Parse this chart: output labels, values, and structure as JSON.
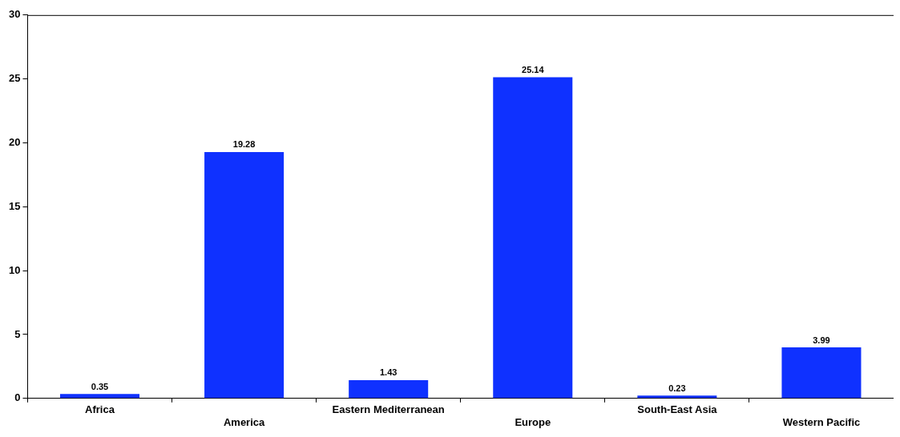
{
  "chart_data": {
    "type": "bar",
    "categories": [
      "Africa",
      "America",
      "Eastern Mediterranean",
      "Europe",
      "South-East Asia",
      "Western Pacific"
    ],
    "values": [
      0.35,
      19.28,
      1.43,
      25.14,
      0.23,
      3.99
    ],
    "color": "#0f31ff",
    "ylim": [
      0,
      30
    ],
    "yticks": [
      0,
      5,
      10,
      15,
      20,
      25,
      30
    ],
    "data_labels": true,
    "grid": false,
    "legend": false
  }
}
